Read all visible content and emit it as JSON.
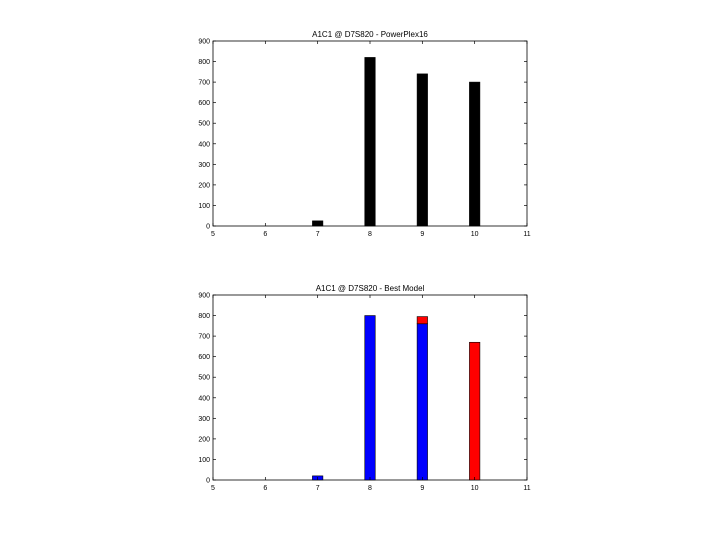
{
  "chart_data": [
    {
      "type": "bar",
      "title": "A1C1 @ D7S820 - PowerPlex16",
      "xlabel": "",
      "ylabel": "",
      "xlim": [
        5,
        11
      ],
      "ylim": [
        0,
        900
      ],
      "xticks": [
        5,
        6,
        7,
        8,
        9,
        10,
        11
      ],
      "yticks": [
        0,
        100,
        200,
        300,
        400,
        500,
        600,
        700,
        800,
        900
      ],
      "x": [
        7,
        8,
        9,
        10
      ],
      "series": [
        {
          "values": [
            25,
            820,
            740,
            700
          ],
          "color": "#000000"
        }
      ],
      "stacked": false,
      "grid": false,
      "legend": "none"
    },
    {
      "type": "bar",
      "title": "A1C1 @ D7S820 - Best Model",
      "xlabel": "",
      "ylabel": "",
      "xlim": [
        5,
        11
      ],
      "ylim": [
        0,
        900
      ],
      "xticks": [
        5,
        6,
        7,
        8,
        9,
        10,
        11
      ],
      "yticks": [
        0,
        100,
        200,
        300,
        400,
        500,
        600,
        700,
        800,
        900
      ],
      "x": [
        7,
        8,
        9,
        10
      ],
      "series": [
        {
          "values": [
            20,
            800,
            760,
            0
          ],
          "color": "#0000ff"
        },
        {
          "values": [
            0,
            0,
            35,
            670
          ],
          "color": "#ff0000"
        }
      ],
      "stacked": true,
      "grid": false,
      "legend": "none"
    }
  ]
}
